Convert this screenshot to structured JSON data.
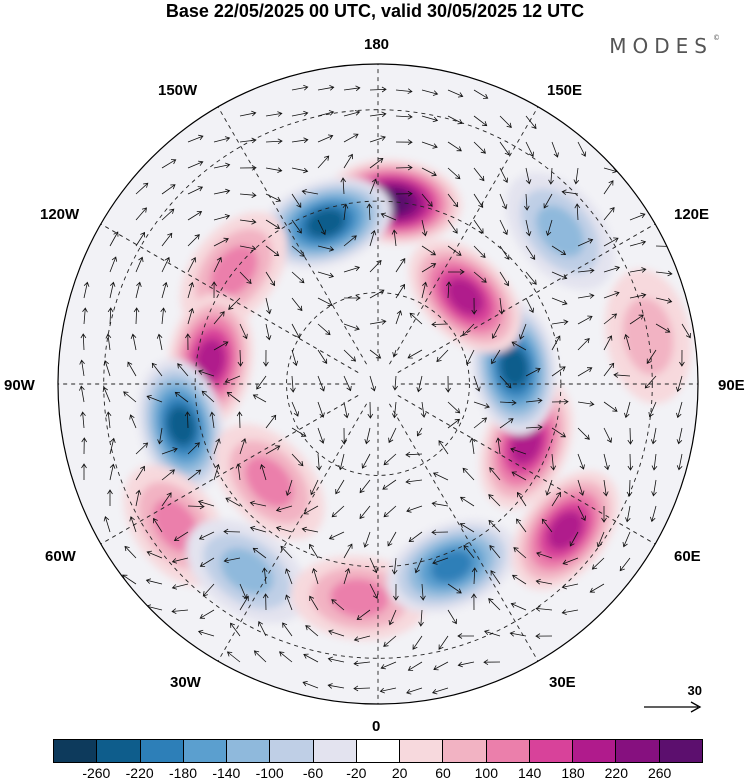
{
  "title": "Base 22/05/2025 00 UTC, valid 30/05/2025 12 UTC",
  "logo": "MODES",
  "logo_mark": "©",
  "longitude_labels": [
    "180",
    "150E",
    "120E",
    "90E",
    "60E",
    "30E",
    "0",
    "30W",
    "60W",
    "90W",
    "120W",
    "150W"
  ],
  "reference_vector": "30",
  "colorbar": {
    "colors": [
      "#0d3a5c",
      "#0e5d8c",
      "#2d7fb8",
      "#5b9fcf",
      "#8fb9dc",
      "#bfcfe6",
      "#e3e3ef",
      "#ffffff",
      "#f7d9dd",
      "#f2b3c3",
      "#eb7fab",
      "#d8429a",
      "#b01b8c",
      "#86107f",
      "#5c0f6e"
    ],
    "ticks": [
      "-260",
      "-220",
      "-180",
      "-140",
      "-100",
      "-60",
      "-20",
      "20",
      "60",
      "100",
      "140",
      "180",
      "220",
      "260"
    ]
  },
  "anomaly_centers": [
    {
      "lon": 175,
      "lat": 50,
      "value": 260
    },
    {
      "lon": -162,
      "lat": 53,
      "value": -220
    },
    {
      "lon": -128,
      "lat": 50,
      "value": 120
    },
    {
      "lon": -98,
      "lat": 53,
      "value": 180
    },
    {
      "lon": -78,
      "lat": 46,
      "value": -220
    },
    {
      "lon": -55,
      "lat": 36,
      "value": 100
    },
    {
      "lon": -35,
      "lat": 40,
      "value": -120
    },
    {
      "lon": -48,
      "lat": 58,
      "value": 100
    },
    {
      "lon": -5,
      "lat": 43,
      "value": 100
    },
    {
      "lon": 22,
      "lat": 47,
      "value": -180
    },
    {
      "lon": 52,
      "lat": 38,
      "value": 180
    },
    {
      "lon": 68,
      "lat": 55,
      "value": 180
    },
    {
      "lon": 97,
      "lat": 60,
      "value": -220
    },
    {
      "lon": 135,
      "lat": 63,
      "value": 180
    },
    {
      "lon": 130,
      "lat": 38,
      "value": -120
    },
    {
      "lon": 100,
      "lat": 30,
      "value": 60
    }
  ]
}
